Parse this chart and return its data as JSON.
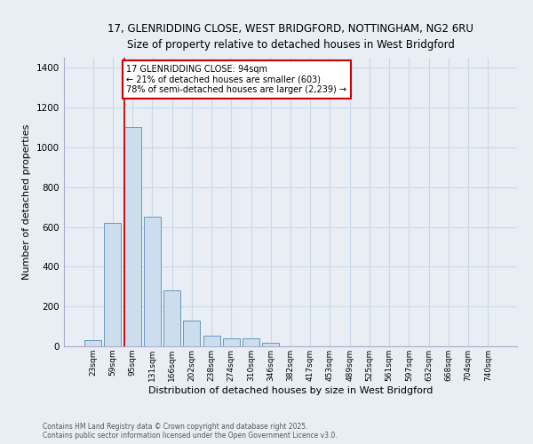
{
  "title_line1": "17, GLENRIDDING CLOSE, WEST BRIDGFORD, NOTTINGHAM, NG2 6RU",
  "title_line2": "Size of property relative to detached houses in West Bridgford",
  "xlabel": "Distribution of detached houses by size in West Bridgford",
  "ylabel": "Number of detached properties",
  "bin_labels": [
    "23sqm",
    "59sqm",
    "95sqm",
    "131sqm",
    "166sqm",
    "202sqm",
    "238sqm",
    "274sqm",
    "310sqm",
    "346sqm",
    "382sqm",
    "417sqm",
    "453sqm",
    "489sqm",
    "525sqm",
    "561sqm",
    "597sqm",
    "632sqm",
    "668sqm",
    "704sqm",
    "740sqm"
  ],
  "bar_values": [
    30,
    620,
    1100,
    650,
    280,
    130,
    55,
    40,
    40,
    20,
    0,
    0,
    0,
    0,
    0,
    0,
    0,
    0,
    0,
    0,
    0
  ],
  "bar_color": "#ccdded",
  "bar_edge_color": "#6699bb",
  "property_line_label": "17 GLENRIDDING CLOSE: 94sqm",
  "annotation_line2": "← 21% of detached houses are smaller (603)",
  "annotation_line3": "78% of semi-detached houses are larger (2,239) →",
  "annotation_box_color": "#ffffff",
  "annotation_box_edge": "#cc0000",
  "vline_color": "#cc0000",
  "grid_color": "#c8d8e8",
  "background_color": "#e8eef4",
  "ylim": [
    0,
    1450
  ],
  "yticks": [
    0,
    200,
    400,
    600,
    800,
    1000,
    1200,
    1400
  ],
  "footnote1": "Contains HM Land Registry data © Crown copyright and database right 2025.",
  "footnote2": "Contains public sector information licensed under the Open Government Licence v3.0."
}
